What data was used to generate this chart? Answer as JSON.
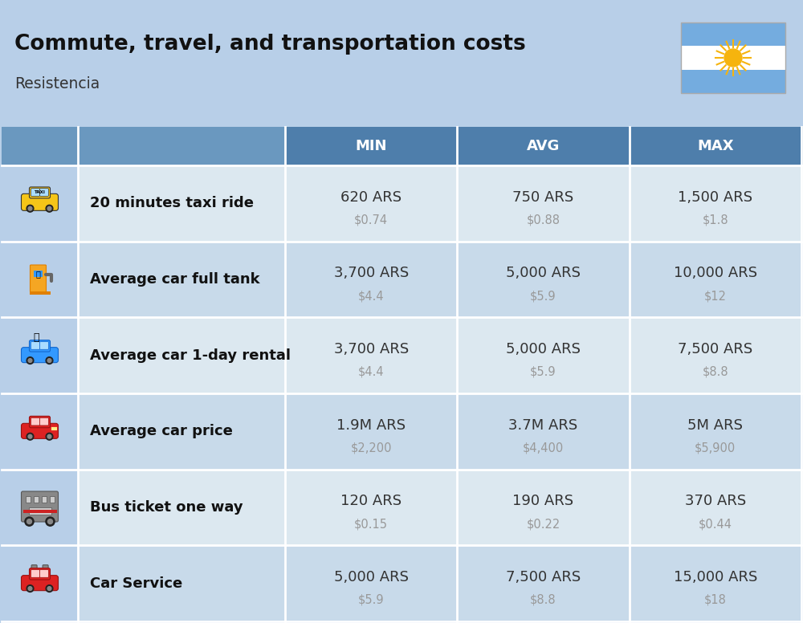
{
  "title": "Commute, travel, and transportation costs",
  "subtitle": "Resistencia",
  "bg_color": "#b8cfe8",
  "header_color": "#4e7eab",
  "row_bg_light": "#dce8f0",
  "row_bg_dark": "#c8daea",
  "icon_col_bg": "#b8cfe8",
  "header_text_color": "#ffffff",
  "label_text_color": "#111111",
  "value_text_color": "#333333",
  "sub_value_color": "#999999",
  "divider_color": "#ffffff",
  "col_headers": [
    "MIN",
    "AVG",
    "MAX"
  ],
  "rows": [
    {
      "label": "20 minutes taxi ride",
      "min_ars": "620 ARS",
      "min_usd": "$0.74",
      "avg_ars": "750 ARS",
      "avg_usd": "$0.88",
      "max_ars": "1,500 ARS",
      "max_usd": "$1.8"
    },
    {
      "label": "Average car full tank",
      "min_ars": "3,700 ARS",
      "min_usd": "$4.4",
      "avg_ars": "5,000 ARS",
      "avg_usd": "$5.9",
      "max_ars": "10,000 ARS",
      "max_usd": "$12"
    },
    {
      "label": "Average car 1-day rental",
      "min_ars": "3,700 ARS",
      "min_usd": "$4.4",
      "avg_ars": "5,000 ARS",
      "avg_usd": "$5.9",
      "max_ars": "7,500 ARS",
      "max_usd": "$8.8"
    },
    {
      "label": "Average car price",
      "min_ars": "1.9M ARS",
      "min_usd": "$2,200",
      "avg_ars": "3.7M ARS",
      "avg_usd": "$4,400",
      "max_ars": "5M ARS",
      "max_usd": "$5,900"
    },
    {
      "label": "Bus ticket one way",
      "min_ars": "120 ARS",
      "min_usd": "$0.15",
      "avg_ars": "190 ARS",
      "avg_usd": "$0.22",
      "max_ars": "370 ARS",
      "max_usd": "$0.44"
    },
    {
      "label": "Car Service",
      "min_ars": "5,000 ARS",
      "min_usd": "$5.9",
      "avg_ars": "7,500 ARS",
      "avg_usd": "$8.8",
      "max_ars": "15,000 ARS",
      "max_usd": "$18"
    }
  ],
  "figw": 10.0,
  "figh": 7.76,
  "dpi": 100
}
